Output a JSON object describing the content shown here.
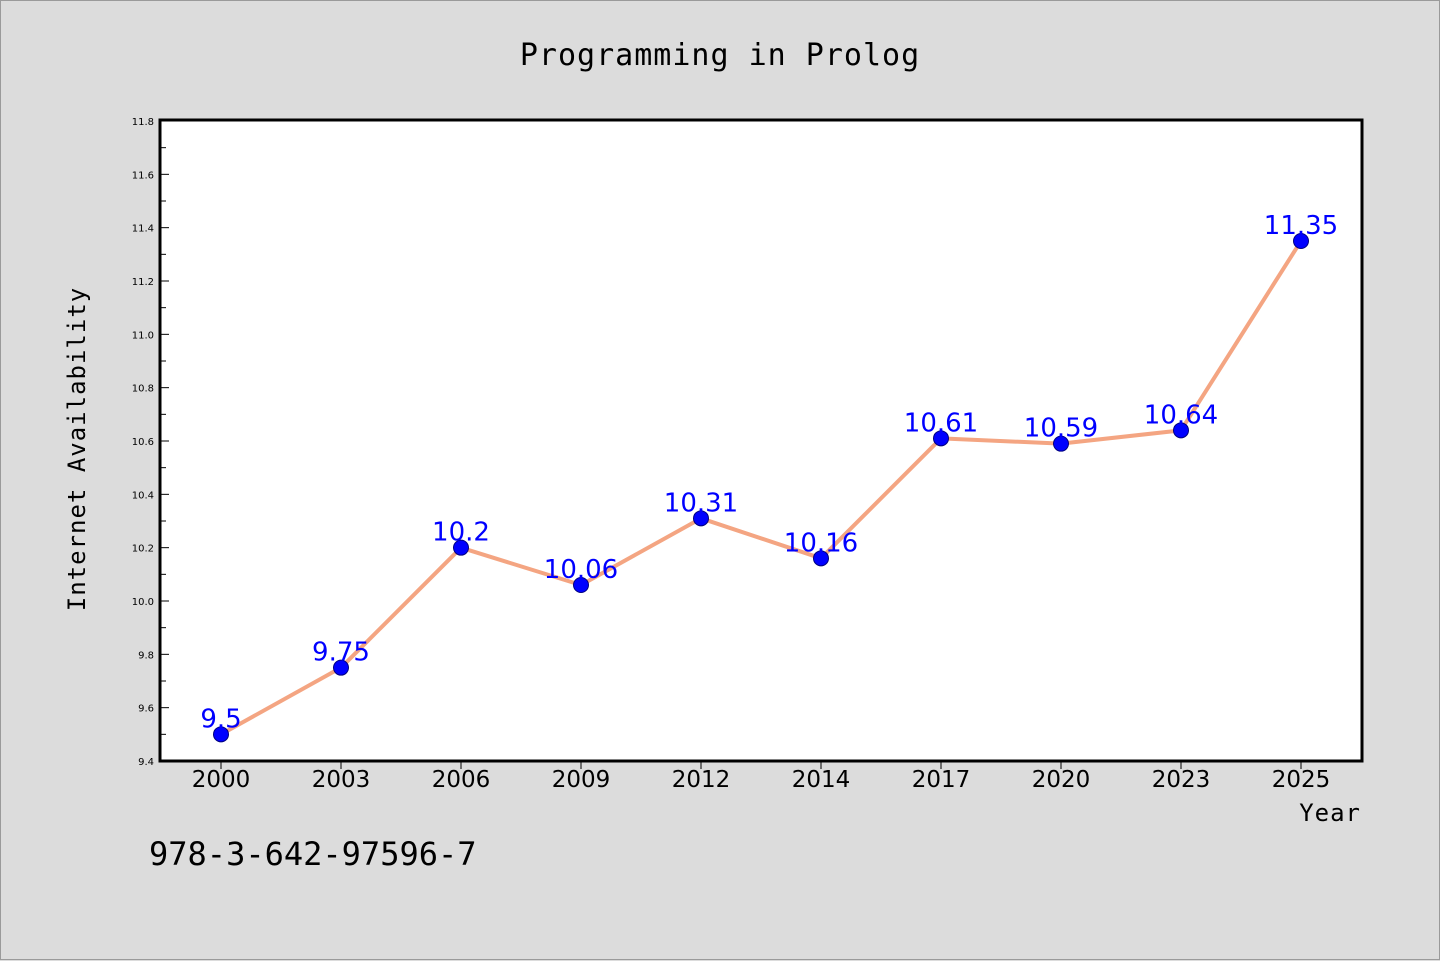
{
  "chart_data": {
    "type": "line",
    "title": "Programming in Prolog",
    "xlabel": "Year",
    "ylabel": "Internet Availability",
    "categories": [
      "2000",
      "2003",
      "2006",
      "2009",
      "2012",
      "2014",
      "2017",
      "2020",
      "2023",
      "2025"
    ],
    "series": [
      {
        "values": [
          9.5,
          9.75,
          10.2,
          10.06,
          10.31,
          10.16,
          10.61,
          10.59,
          10.64,
          11.35
        ]
      }
    ],
    "data_labels": [
      "9.5",
      "9.75",
      "10.2",
      "10.06",
      "10.31",
      "10.16",
      "10.61",
      "10.59",
      "10.64",
      "11.35"
    ],
    "ylim": [
      9.4,
      11.8
    ],
    "yticks": [
      "9.4",
      "9.6",
      "9.8",
      "10.0",
      "10.2",
      "10.4",
      "10.6",
      "10.8",
      "11.0",
      "11.2",
      "11.4",
      "11.6",
      "11.8"
    ],
    "grid": false,
    "colors": {
      "line": "#f4a582",
      "marker": "#0000ff",
      "label": "#0000ff",
      "background": "#dcdcdc",
      "plot_background": "#ffffff"
    }
  },
  "footer": {
    "code": "978-3-642-97596-7"
  }
}
